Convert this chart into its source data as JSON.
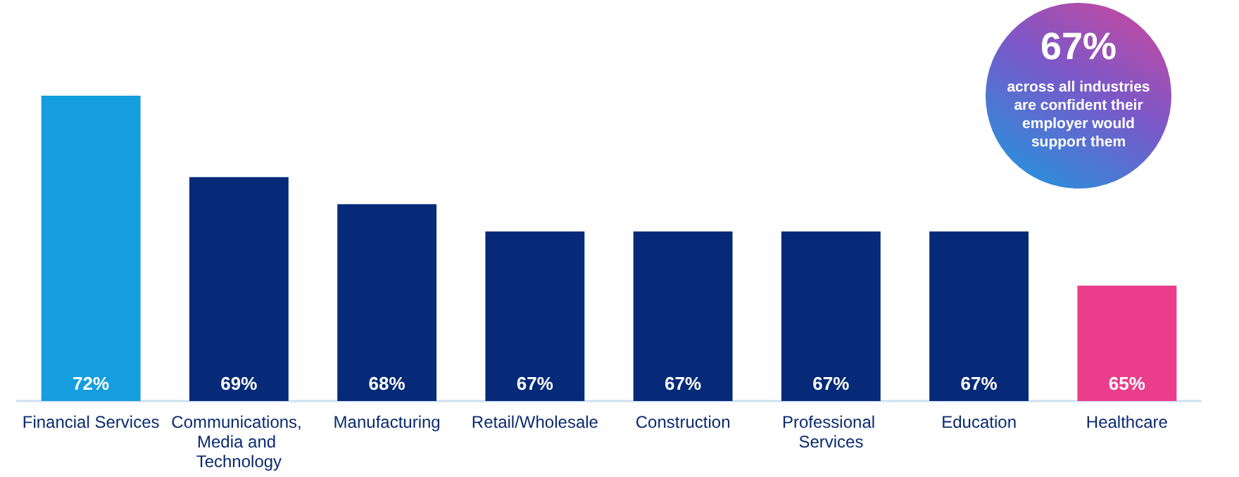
{
  "chart_data": {
    "type": "bar",
    "categories": [
      "Financial Services",
      "Communications, Media and Technology",
      "Manufacturing",
      "Retail/Wholesale",
      "Construction",
      "Professional Services",
      "Education",
      "Healthcare"
    ],
    "values": [
      72,
      69,
      68,
      67,
      67,
      67,
      67,
      65
    ],
    "colors": [
      "#149ddf",
      "#062a78",
      "#062a78",
      "#062a78",
      "#062a78",
      "#062a78",
      "#062a78",
      "#ea3e8c"
    ],
    "value_labels": [
      "72%",
      "69%",
      "68%",
      "67%",
      "67%",
      "67%",
      "67%",
      "65%"
    ],
    "ylim": [
      60.75,
      72
    ],
    "annotations": [
      "67%",
      "across all industries are confident their employer would support them"
    ]
  }
}
